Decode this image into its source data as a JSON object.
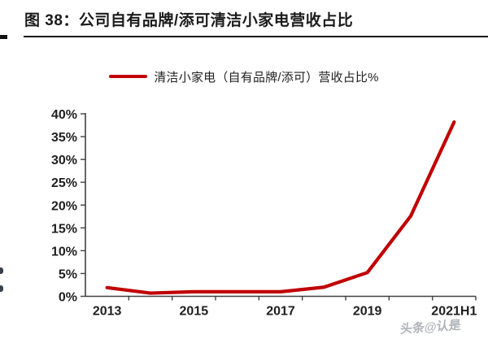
{
  "header": {
    "title": "图 38：公司自有品牌/添可清洁小家电营收占比"
  },
  "legend": {
    "label": "清洁小家电（自有品牌/添可）营收占比%"
  },
  "watermark": {
    "text": "头条@认是"
  },
  "colors": {
    "line": "#c00000",
    "axis": "#404040",
    "text": "#1f1f1f",
    "watermark": "#a8acb1"
  },
  "chart_data": {
    "type": "line",
    "title": "图 38：公司自有品牌/添可清洁小家电营收占比",
    "categories": [
      "2013",
      "2014",
      "2015",
      "2016",
      "2017",
      "2018",
      "2019",
      "2020",
      "2021H1"
    ],
    "series": [
      {
        "name": "清洁小家电（自有品牌/添可）营收占比%",
        "values": [
          1.9,
          0.7,
          1.0,
          1.0,
          1.0,
          2.0,
          5.2,
          17.6,
          38.2
        ]
      }
    ],
    "x_tick_labels": [
      "2013",
      "2015",
      "2017",
      "2019",
      "2021H1"
    ],
    "x_tick_category_indices": [
      0,
      2,
      4,
      6,
      8
    ],
    "y_tick_labels": [
      "0%",
      "5%",
      "10%",
      "15%",
      "20%",
      "25%",
      "30%",
      "35%",
      "40%"
    ],
    "y_tick_values": [
      0,
      5,
      10,
      15,
      20,
      25,
      30,
      35,
      40
    ],
    "ylim": [
      0,
      40
    ],
    "grid": false,
    "legend_position": "top-center"
  }
}
